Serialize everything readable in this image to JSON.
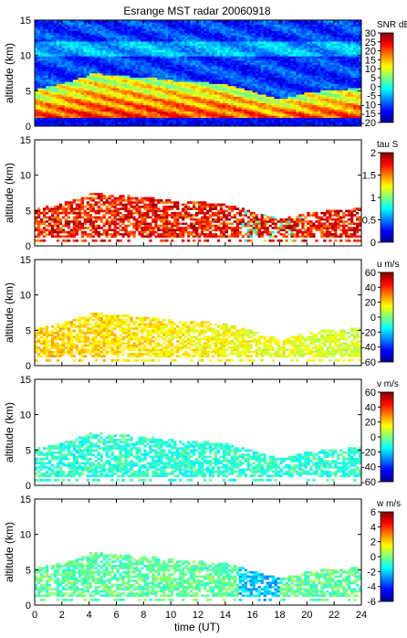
{
  "figure": {
    "title": "Esrange MST radar 20060918",
    "xlabel": "time (UT)"
  },
  "chart_data": [
    {
      "type": "heatmap",
      "panel": "SNR",
      "ylabel": "altitude (km)",
      "ylim": [
        0,
        15
      ],
      "xlim": [
        0,
        24
      ],
      "yticks": [
        "0",
        "5",
        "10",
        "15"
      ],
      "colorbar": {
        "label": "SNR dB",
        "range": [
          -20,
          30
        ],
        "ticks": [
          "30",
          "25",
          "20",
          "15",
          "10",
          "5",
          "0",
          "-5",
          "-10",
          "-15",
          "-20"
        ]
      },
      "colors": {
        "low": "#0000a0",
        "high": "#a00000"
      }
    },
    {
      "type": "heatmap",
      "panel": "tau",
      "ylabel": "altitude (km)",
      "ylim": [
        0,
        15
      ],
      "xlim": [
        0,
        24
      ],
      "yticks": [
        "0",
        "5",
        "10",
        "15"
      ],
      "colorbar": {
        "label": "tau S",
        "range": [
          0,
          2
        ],
        "ticks": [
          "2",
          "1.5",
          "1",
          "0.5",
          "0"
        ]
      }
    },
    {
      "type": "heatmap",
      "panel": "u",
      "ylabel": "altitude (km)",
      "ylim": [
        0,
        15
      ],
      "xlim": [
        0,
        24
      ],
      "yticks": [
        "0",
        "5",
        "10",
        "15"
      ],
      "colorbar": {
        "label": "u m/s",
        "range": [
          -60,
          60
        ],
        "ticks": [
          "60",
          "40",
          "20",
          "0",
          "-20",
          "-40",
          "-60"
        ]
      }
    },
    {
      "type": "heatmap",
      "panel": "v",
      "ylabel": "altitude (km)",
      "ylim": [
        0,
        15
      ],
      "xlim": [
        0,
        24
      ],
      "yticks": [
        "0",
        "5",
        "10",
        "15"
      ],
      "colorbar": {
        "label": "v m/s",
        "range": [
          -60,
          60
        ],
        "ticks": [
          "60",
          "40",
          "20",
          "0",
          "-20",
          "-40",
          "-60"
        ]
      }
    },
    {
      "type": "heatmap",
      "panel": "w",
      "ylabel": "altitude (km)",
      "ylim": [
        0,
        15
      ],
      "xlim": [
        0,
        24
      ],
      "yticks": [
        "0",
        "5",
        "10",
        "15"
      ],
      "xticks": [
        "0",
        "2",
        "4",
        "6",
        "8",
        "10",
        "12",
        "14",
        "16",
        "18",
        "20",
        "22",
        "24"
      ],
      "colorbar": {
        "label": "w m/s",
        "range": [
          -6,
          6
        ],
        "ticks": [
          "6",
          "4",
          "2",
          "0",
          "-2",
          "-4",
          "-6"
        ]
      }
    }
  ]
}
